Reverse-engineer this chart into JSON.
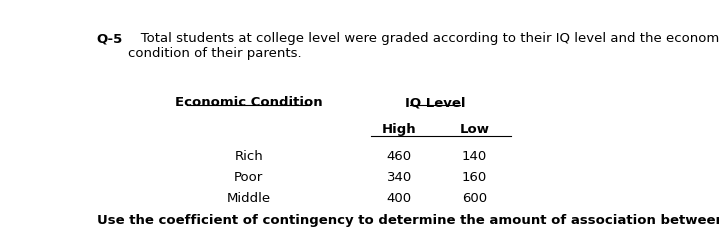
{
  "title_bold": "Q-5",
  "title_rest": "   Total students at college level were graded according to their IQ level and the economic\ncondition of their parents.",
  "col_header_left": "Economic Condition",
  "col_header_right": "IQ Level",
  "sub_header_high": "High",
  "sub_header_low": "Low",
  "rows": [
    {
      "label": "Rich",
      "high": "460",
      "low": "140"
    },
    {
      "label": "Poor",
      "high": "340",
      "low": "160"
    },
    {
      "label": "Middle",
      "high": "400",
      "low": "600"
    }
  ],
  "footer": "Use the coefficient of contingency to determine the amount of association between economic\ncondition and IQ level.",
  "bg_color": "#ffffff",
  "text_color": "#000000",
  "font_size": 9.5
}
